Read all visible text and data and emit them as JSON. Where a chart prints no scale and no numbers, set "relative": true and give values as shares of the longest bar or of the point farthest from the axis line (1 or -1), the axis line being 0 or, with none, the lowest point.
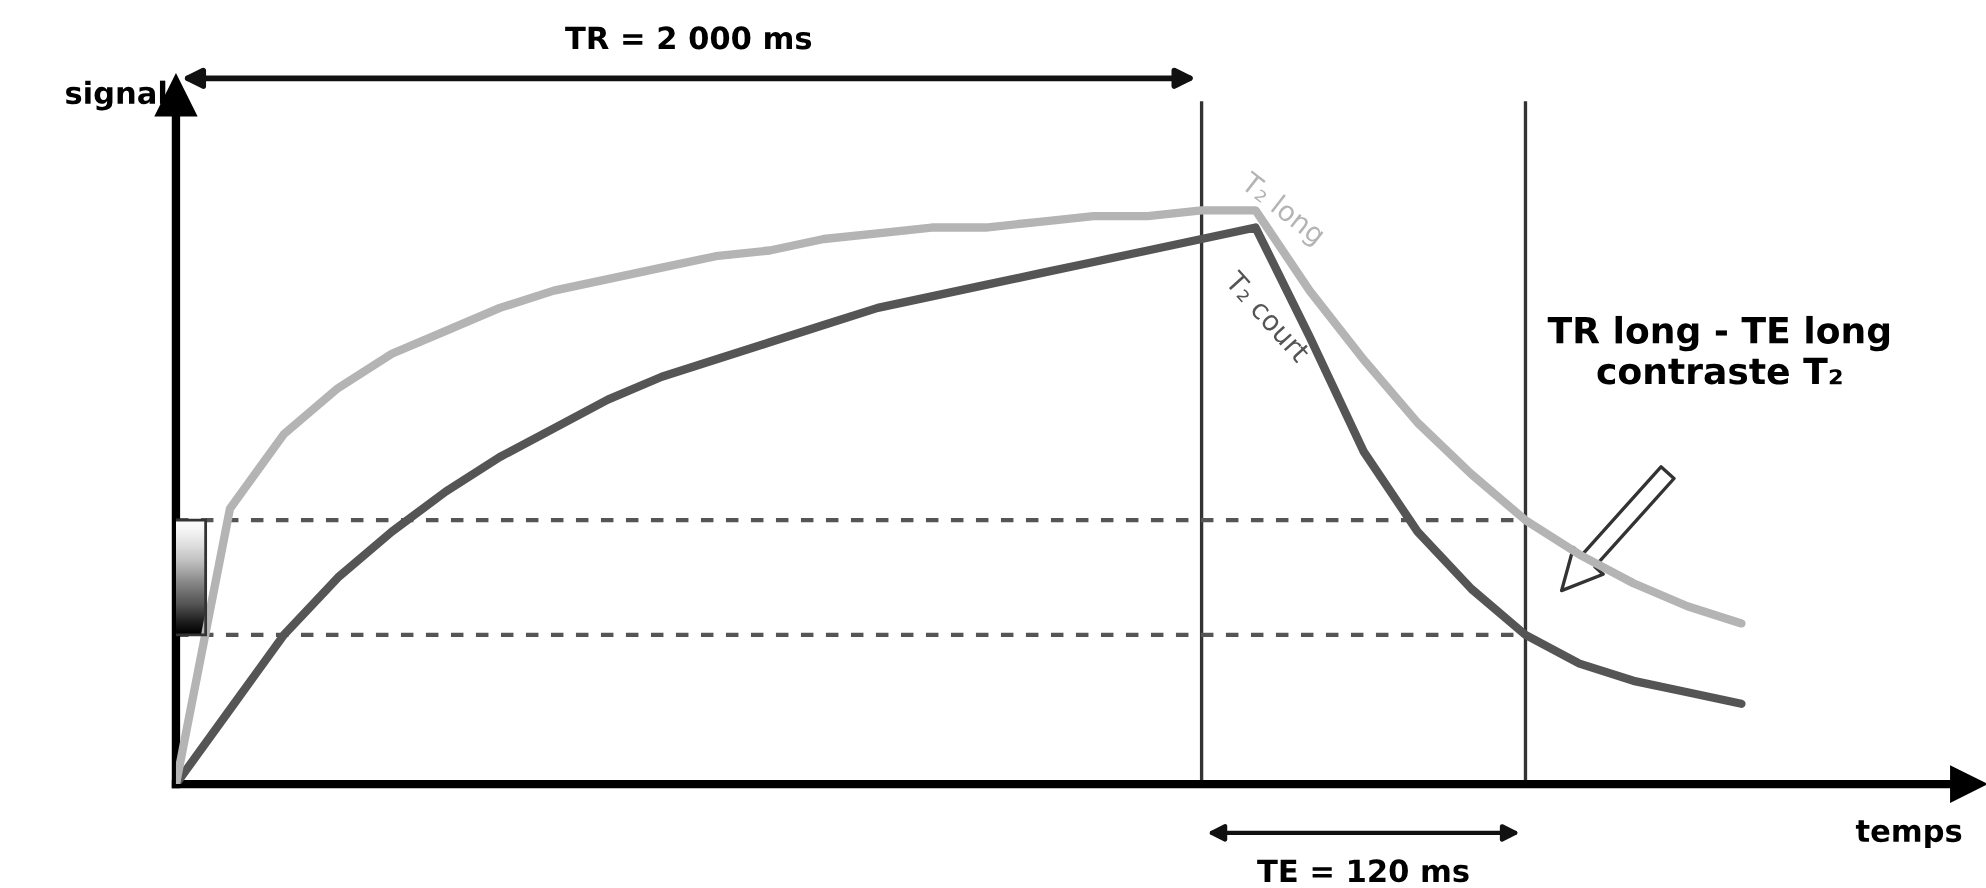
{
  "chart_data": {
    "type": "line",
    "relative": true,
    "xlabel": "temps",
    "ylabel": "signal",
    "categories": [
      null,
      null,
      null,
      null,
      null,
      null,
      null,
      null,
      null,
      null,
      null,
      null,
      null,
      null,
      null,
      null,
      null,
      null,
      null,
      null,
      null,
      null,
      null,
      null,
      null,
      null,
      null,
      null,
      null,
      null
    ],
    "series": [
      {
        "name": "T₂ long",
        "color": "#b4b4b4",
        "values": [
          0,
          0.48,
          0.61,
          0.69,
          0.75,
          0.79,
          0.83,
          0.86,
          0.88,
          0.9,
          0.92,
          0.93,
          0.95,
          0.96,
          0.97,
          0.97,
          0.98,
          0.99,
          0.99,
          1.0,
          1.0,
          0.86,
          0.74,
          0.63,
          0.54,
          0.46,
          0.4,
          0.35,
          0.31,
          0.28
        ]
      },
      {
        "name": "T₂ court",
        "color": "#555555",
        "values": [
          0,
          0.13,
          0.26,
          0.36,
          0.44,
          0.51,
          0.57,
          0.62,
          0.67,
          0.71,
          0.74,
          0.77,
          0.8,
          0.83,
          0.85,
          0.87,
          0.89,
          0.91,
          0.93,
          0.95,
          0.97,
          0.78,
          0.58,
          0.44,
          0.34,
          0.26,
          0.21,
          0.18,
          0.16,
          0.14
        ]
      }
    ],
    "ref_lines": [
      {
        "axis": "y",
        "value": 0.46,
        "color": "#555555",
        "line_style": "dashed"
      },
      {
        "axis": "y",
        "value": 0.26,
        "color": "#555555",
        "line_style": "dashed"
      }
    ],
    "annotations": [
      "TR = 2 000 ms",
      "TE = 120 ms",
      "TR long - TE long\ncontraste T₂"
    ],
    "marker": "none",
    "line_style": "solid"
  }
}
